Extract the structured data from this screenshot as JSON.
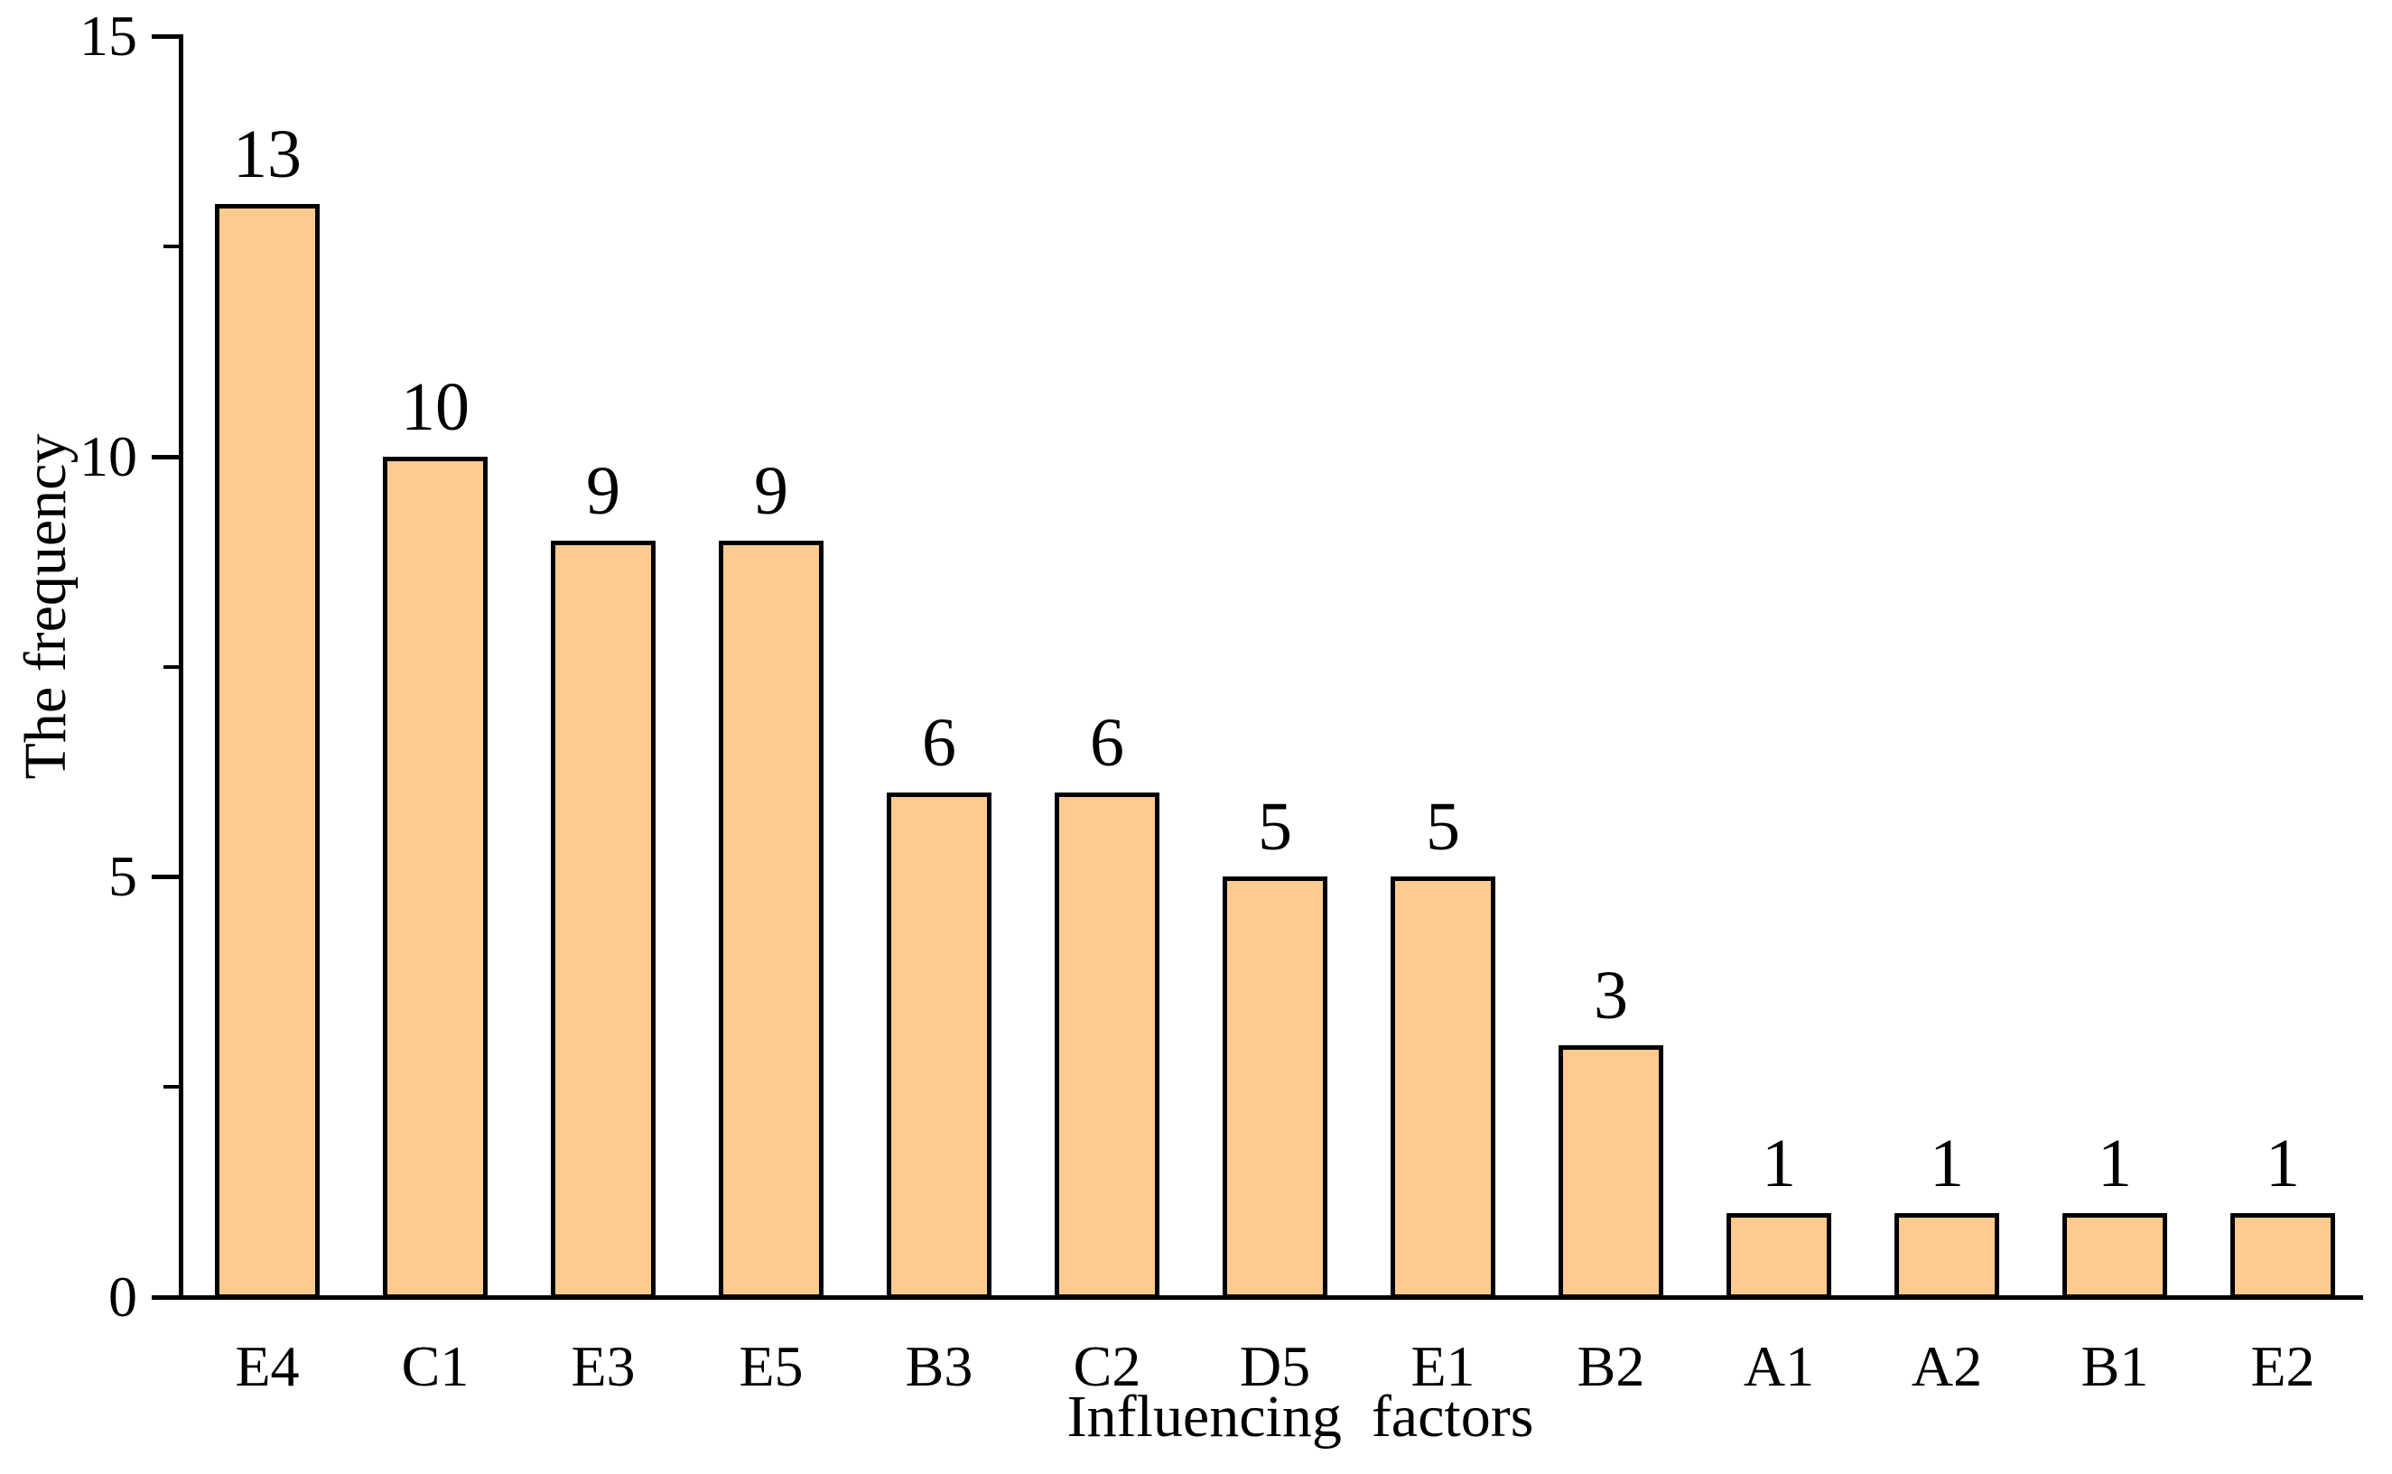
{
  "chart_data": {
    "type": "bar",
    "title": "",
    "ylabel": "The frequency",
    "xlabel": "Influencing  factors",
    "categories": [
      "E4",
      "C1",
      "E3",
      "E5",
      "B3",
      "C2",
      "D5",
      "E1",
      "B2",
      "A1",
      "A2",
      "B1",
      "E2"
    ],
    "values": [
      13,
      10,
      9,
      9,
      6,
      6,
      5,
      5,
      3,
      1,
      1,
      1,
      1
    ],
    "bar_value_labels": [
      "13",
      "10",
      "9",
      "9",
      "6",
      "6",
      "5",
      "5",
      "3",
      "1",
      "1",
      "1",
      "1"
    ],
    "y_tick_labels": [
      "0",
      "5",
      "10",
      "15"
    ],
    "ylim": [
      0,
      15
    ],
    "yticks_major": [
      0,
      5,
      10,
      15
    ],
    "yticks_minor": [
      2.5,
      7.5,
      12.5
    ],
    "grid": false,
    "legend": "none",
    "colors": {
      "bar_fill": "#FDCB90",
      "bar_border": "#000000",
      "axis": "#000000",
      "text": "#000000",
      "background": "#FFFFFF"
    }
  }
}
